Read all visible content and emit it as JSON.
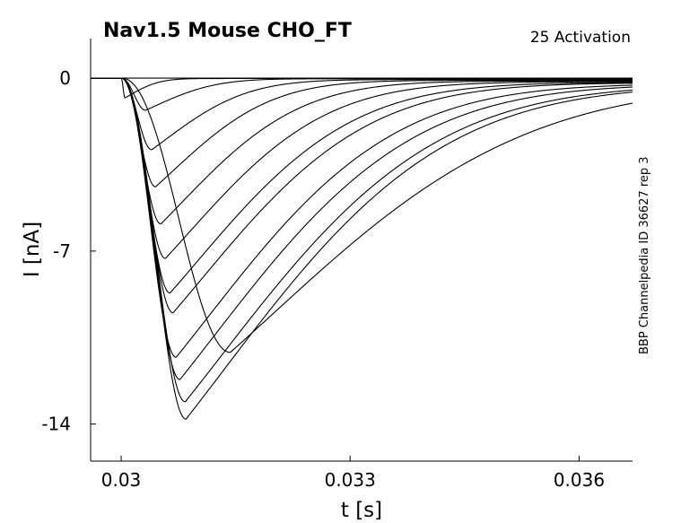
{
  "chart_data": {
    "type": "line",
    "title": "Nav1.5  Mouse  CHO_FT",
    "annotation": "25  Activation",
    "side_label": "BBP Channelpedia ID 36627 rep 3",
    "xlabel": "t [s]",
    "ylabel": "I [nA]",
    "xlim": [
      0.0296,
      0.0367
    ],
    "ylim": [
      -15.5,
      1.6
    ],
    "xticks": [
      0.03,
      0.033,
      0.036
    ],
    "xtick_labels": [
      "0.03",
      "0.033",
      "0.036"
    ],
    "yticks": [
      0,
      -7,
      -14
    ],
    "ytick_labels": [
      "0",
      "-7",
      "-14"
    ],
    "grid": false,
    "line_color": "#000000",
    "step_onset_s": 0.03,
    "baseline_nA": 0.0,
    "series_peaks": [
      {
        "peak_time_s": 0.03005,
        "peak_current_nA": -0.8
      },
      {
        "peak_time_s": 0.03032,
        "peak_current_nA": -1.3
      },
      {
        "peak_time_s": 0.0304,
        "peak_current_nA": -2.9
      },
      {
        "peak_time_s": 0.03045,
        "peak_current_nA": -4.4
      },
      {
        "peak_time_s": 0.03052,
        "peak_current_nA": -5.9
      },
      {
        "peak_time_s": 0.03058,
        "peak_current_nA": -7.3
      },
      {
        "peak_time_s": 0.03064,
        "peak_current_nA": -8.7
      },
      {
        "peak_time_s": 0.03068,
        "peak_current_nA": -9.5
      },
      {
        "peak_time_s": 0.03072,
        "peak_current_nA": -11.3
      },
      {
        "peak_time_s": 0.03077,
        "peak_current_nA": -12.2
      },
      {
        "peak_time_s": 0.03084,
        "peak_current_nA": -13.1
      },
      {
        "peak_time_s": 0.03085,
        "peak_current_nA": -13.8
      },
      {
        "peak_time_s": 0.03143,
        "peak_current_nA": -11.1
      }
    ]
  }
}
